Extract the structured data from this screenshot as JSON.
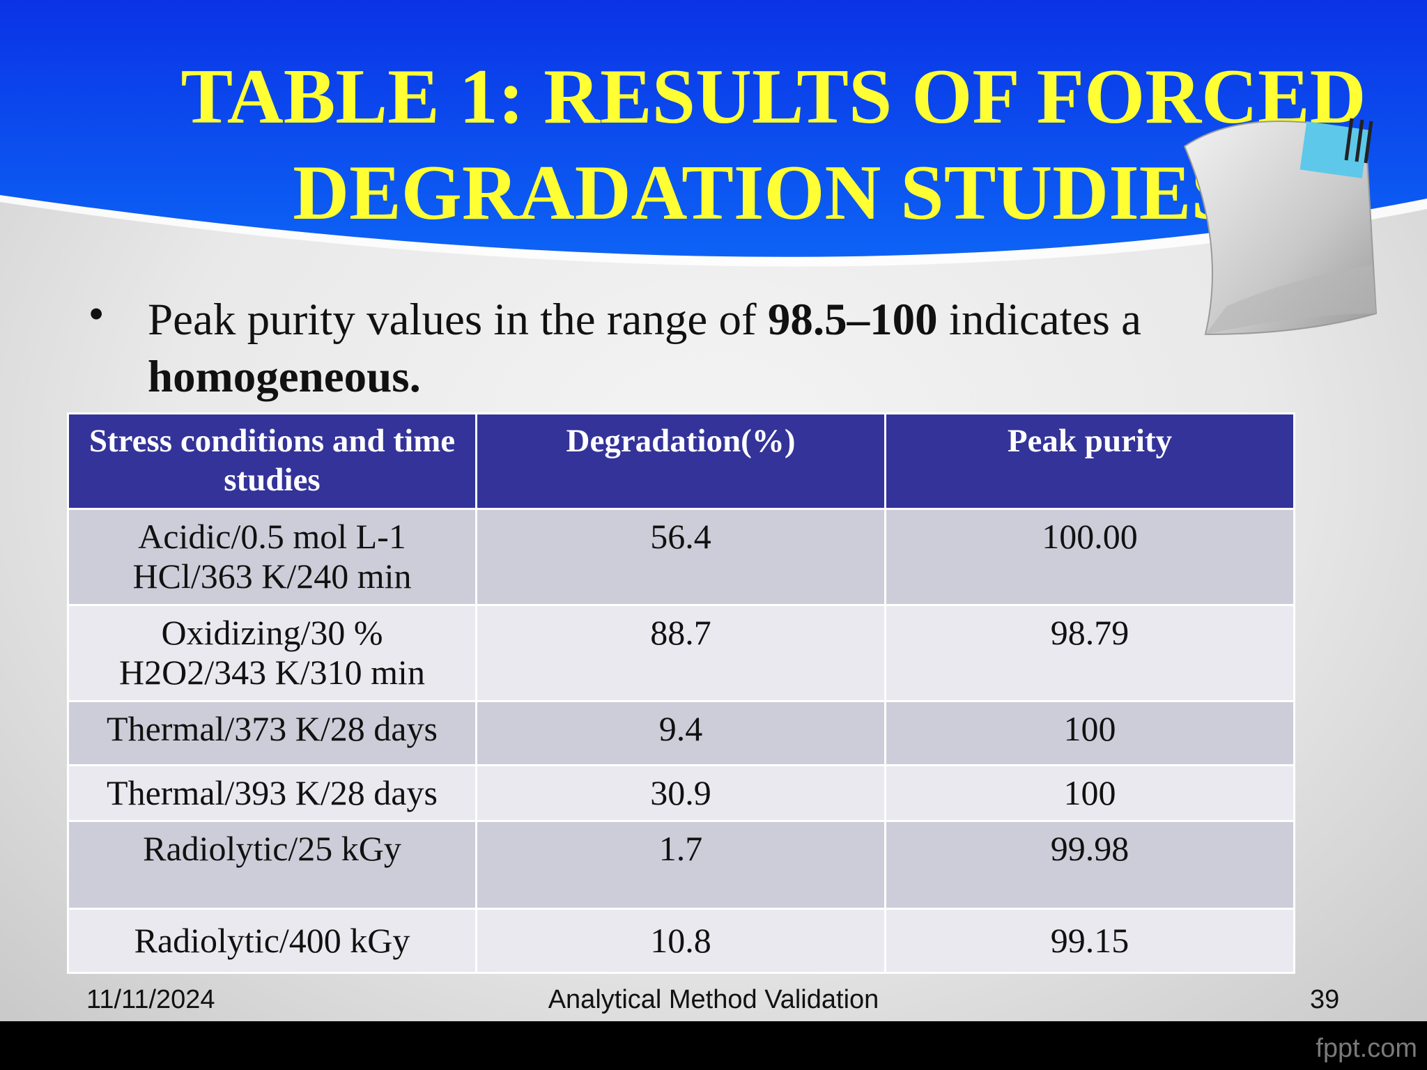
{
  "slide": {
    "title_line1": "TABLE 1: RESULTS OF FORCED",
    "title_line2": "DEGRADATION STUDIES."
  },
  "bullet": {
    "text_before": "Peak purity values in the range of ",
    "bold_range": "98.5–100",
    "text_middle": " indicates a ",
    "bold_end": "homogeneous."
  },
  "table": {
    "headers": [
      "Stress conditions and time studies",
      "Degradation(%)",
      "Peak purity"
    ],
    "rows": [
      {
        "condition_line1": "Acidic/0.5 mol L-1",
        "condition_line2": "HCl/363 K/240 min",
        "degradation": "56.4",
        "purity": "100.00"
      },
      {
        "condition_line1": "Oxidizing/30 %",
        "condition_line2": "H2O2/343 K/310 min",
        "degradation": "88.7",
        "purity": "98.79"
      },
      {
        "condition_line1": "Thermal/373 K/28 days",
        "condition_line2": "",
        "degradation": "9.4",
        "purity": "100"
      },
      {
        "condition_line1": "Thermal/393 K/28 days",
        "condition_line2": "",
        "degradation": "30.9",
        "purity": "100"
      },
      {
        "condition_line1": "Radiolytic/25 kGy",
        "condition_line2": "",
        "degradation": "1.7",
        "purity": "99.98"
      },
      {
        "condition_line1": "Radiolytic/400 kGy",
        "condition_line2": "",
        "degradation": "10.8",
        "purity": "99.15"
      }
    ]
  },
  "footer": {
    "date": "11/11/2024",
    "center": "Analytical Method Validation",
    "page_number": "39"
  },
  "watermark": "fppt.com",
  "colors": {
    "header_blue": "#0b45f0",
    "title_yellow": "#ffff33",
    "table_header": "#333399",
    "row_odd": "#cdcdd9",
    "row_even": "#e9e9ef"
  }
}
